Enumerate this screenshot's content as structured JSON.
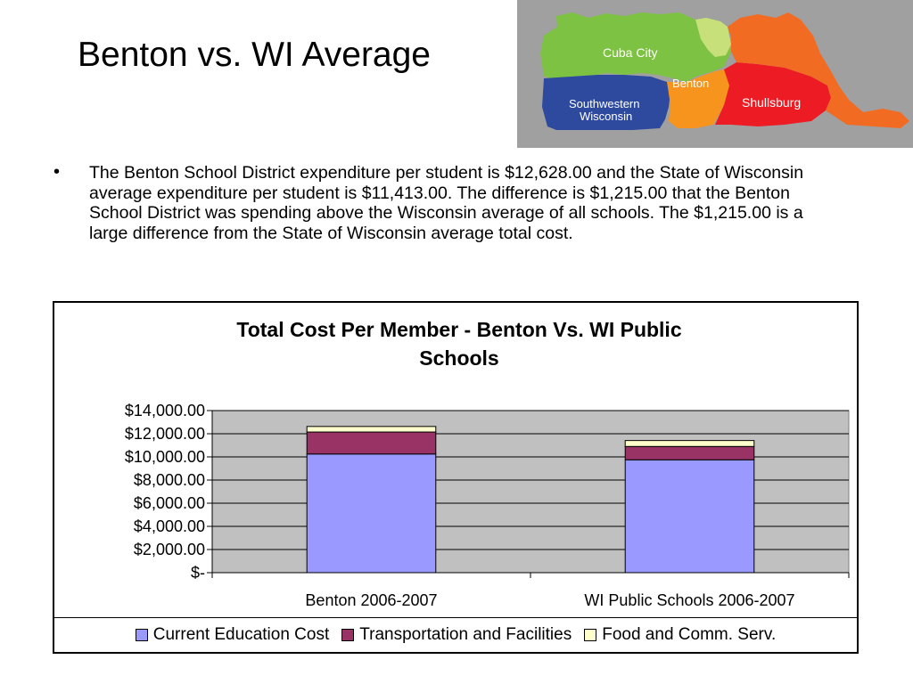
{
  "slide": {
    "title": "Benton vs. WI Average",
    "bullet_symbol": "•",
    "bullet_text": "The Benton School District expenditure per student is $12,628.00 and the State of Wisconsin average expenditure per student is $11,413.00.  The difference is $1,215.00 that the Benton School District was spending above the Wisconsin average of all schools.  The $1,215.00 is a large difference from the State of Wisconsin average total cost."
  },
  "map": {
    "labels": {
      "cuba_city": "Cuba City",
      "benton": "Benton",
      "southwestern_1": "Southwestern",
      "southwestern_2": "Wisconsin",
      "shullsburg": "Shullsburg"
    },
    "colors": {
      "cuba_city": "#7dc242",
      "benton": "#f7941d",
      "southwestern": "#2e4a9e",
      "shullsburg": "#ed1c24",
      "east": "#f26b22",
      "light_green": "#c7e07a",
      "background": "#a0a0a0"
    }
  },
  "chart_data": {
    "type": "bar",
    "stacked": true,
    "title_lines": [
      "Total Cost Per Member - Benton Vs. WI Public",
      "Schools"
    ],
    "categories": [
      "Benton 2006-2007",
      "WI Public Schools 2006-2007"
    ],
    "series": [
      {
        "name": "Current Education Cost",
        "color": "#9999ff",
        "values": [
          10250,
          9750
        ]
      },
      {
        "name": "Transportation and Facilities",
        "color": "#993366",
        "values": [
          1900,
          1150
        ]
      },
      {
        "name": "Food and Comm. Serv.",
        "color": "#ffffcc",
        "values": [
          478,
          513
        ]
      }
    ],
    "ylim": [
      0,
      14000
    ],
    "yticks": [
      {
        "value": 14000,
        "label": "$14,000.00"
      },
      {
        "value": 12000,
        "label": "$12,000.00"
      },
      {
        "value": 10000,
        "label": "$10,000.00"
      },
      {
        "value": 8000,
        "label": "$8,000.00"
      },
      {
        "value": 6000,
        "label": "$6,000.00"
      },
      {
        "value": 4000,
        "label": "$4,000.00"
      },
      {
        "value": 2000,
        "label": "$2,000.00"
      },
      {
        "value": 0,
        "label": "$-"
      }
    ],
    "plot_background": "#c0c0c0",
    "grid": true,
    "legend_position": "bottom"
  }
}
